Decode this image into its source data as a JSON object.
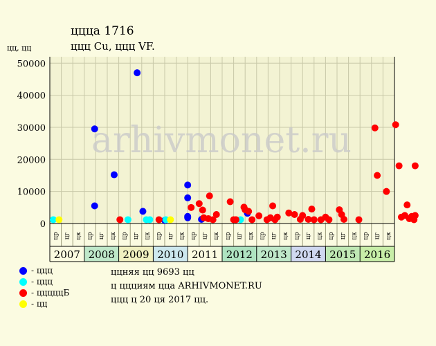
{
  "chart_data": {
    "type": "scatter",
    "title": "ццца 1716",
    "subtitle": "ццц Cu, ццц VF.",
    "ylabel": "цц, цц",
    "watermark": "arhivmonet.ru",
    "ylim": [
      0,
      52000
    ],
    "yticks": [
      0,
      10000,
      20000,
      30000,
      40000,
      50000
    ],
    "grid": true,
    "years": [
      "2007",
      "2008",
      "2009",
      "2010",
      "2011",
      "2012",
      "2013",
      "2014",
      "2015",
      "2016"
    ],
    "year_colors": [
      "#fbfbe1",
      "#bfe8c9",
      "#f0f0c0",
      "#cde8ee",
      "#fbfbe1",
      "#aee3c0",
      "#bfe8c9",
      "#cfd8f0",
      "#bfe8b4",
      "#c8eea8"
    ],
    "quarters": [
      "цр",
      "цг",
      "цк",
      "цр",
      "цг",
      "цк",
      "цр",
      "цг",
      "цк",
      "цр",
      "цг",
      "цк",
      "цр",
      "цг",
      "цк",
      "цр",
      "цг",
      "цк",
      "цр",
      "цг",
      "цк",
      "цр",
      "цг",
      "цк",
      "цр",
      "цг",
      "цк",
      "цр",
      "цг",
      "цк"
    ],
    "series": [
      {
        "name": "ццц",
        "color": "#0000ff",
        "points": [
          {
            "x": 3.9,
            "y": 29500
          },
          {
            "x": 3.9,
            "y": 5500
          },
          {
            "x": 5.6,
            "y": 15200
          },
          {
            "x": 7.6,
            "y": 47000
          },
          {
            "x": 8.1,
            "y": 3800
          },
          {
            "x": 10.0,
            "y": 1000
          },
          {
            "x": 12.0,
            "y": 12000
          },
          {
            "x": 12.0,
            "y": 8000
          },
          {
            "x": 12.0,
            "y": 2200
          },
          {
            "x": 12.0,
            "y": 1800
          },
          {
            "x": 13.2,
            "y": 1300
          },
          {
            "x": 17.2,
            "y": 3200
          }
        ]
      },
      {
        "name": "ццц",
        "color": "#00ffff",
        "points": [
          {
            "x": 0.3,
            "y": 1200
          },
          {
            "x": 6.8,
            "y": 1200
          },
          {
            "x": 8.4,
            "y": 1200
          },
          {
            "x": 8.7,
            "y": 1200
          },
          {
            "x": 10.1,
            "y": 1200
          },
          {
            "x": 16.6,
            "y": 1200
          }
        ]
      },
      {
        "name": "цццццБ",
        "color": "#ff0000",
        "points": [
          {
            "x": 6.1,
            "y": 1200
          },
          {
            "x": 9.5,
            "y": 1200
          },
          {
            "x": 12.3,
            "y": 5000
          },
          {
            "x": 13.0,
            "y": 6200
          },
          {
            "x": 13.3,
            "y": 4200
          },
          {
            "x": 13.4,
            "y": 1800
          },
          {
            "x": 13.9,
            "y": 8600
          },
          {
            "x": 13.8,
            "y": 1500
          },
          {
            "x": 14.2,
            "y": 1200
          },
          {
            "x": 14.5,
            "y": 2800
          },
          {
            "x": 15.7,
            "y": 6800
          },
          {
            "x": 16.0,
            "y": 1200
          },
          {
            "x": 16.2,
            "y": 1200
          },
          {
            "x": 16.9,
            "y": 5100
          },
          {
            "x": 17.0,
            "y": 4300
          },
          {
            "x": 17.3,
            "y": 3800
          },
          {
            "x": 17.6,
            "y": 1200
          },
          {
            "x": 18.2,
            "y": 2400
          },
          {
            "x": 18.9,
            "y": 1200
          },
          {
            "x": 19.2,
            "y": 1800
          },
          {
            "x": 19.4,
            "y": 5500
          },
          {
            "x": 19.6,
            "y": 1200
          },
          {
            "x": 19.8,
            "y": 2000
          },
          {
            "x": 20.8,
            "y": 3300
          },
          {
            "x": 21.3,
            "y": 2800
          },
          {
            "x": 21.8,
            "y": 1300
          },
          {
            "x": 22.0,
            "y": 2500
          },
          {
            "x": 22.5,
            "y": 1300
          },
          {
            "x": 22.8,
            "y": 4500
          },
          {
            "x": 23.0,
            "y": 1200
          },
          {
            "x": 23.6,
            "y": 1200
          },
          {
            "x": 24.0,
            "y": 2000
          },
          {
            "x": 24.3,
            "y": 1200
          },
          {
            "x": 25.2,
            "y": 4300
          },
          {
            "x": 25.4,
            "y": 2800
          },
          {
            "x": 25.6,
            "y": 1300
          },
          {
            "x": 26.9,
            "y": 1200
          },
          {
            "x": 28.3,
            "y": 29800
          },
          {
            "x": 28.5,
            "y": 15000
          },
          {
            "x": 29.3,
            "y": 10000
          },
          {
            "x": 30.1,
            "y": 30800
          },
          {
            "x": 30.4,
            "y": 18000
          },
          {
            "x": 30.6,
            "y": 2000
          },
          {
            "x": 30.9,
            "y": 2500
          },
          {
            "x": 31.1,
            "y": 5800
          },
          {
            "x": 31.3,
            "y": 1500
          },
          {
            "x": 31.5,
            "y": 2200
          },
          {
            "x": 31.7,
            "y": 1200
          },
          {
            "x": 31.8,
            "y": 18000
          },
          {
            "x": 31.8,
            "y": 2500
          }
        ]
      },
      {
        "name": "цц",
        "color": "#ffff00",
        "points": [
          {
            "x": 0.8,
            "y": 1200
          },
          {
            "x": 10.5,
            "y": 1200
          }
        ]
      }
    ]
  },
  "footer": {
    "line1": "ццняя цц 9693 цц",
    "line2": "ц ццциям ццa ARHIVMONET.RU",
    "line3": "ццц ц 20 ця 2017 цц."
  }
}
